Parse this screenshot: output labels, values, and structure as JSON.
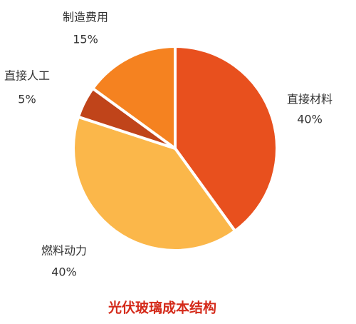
{
  "chart_data": {
    "type": "pie",
    "title": "光伏玻璃成本结构",
    "categories": [
      "直接材料",
      "燃料动力",
      "直接人工",
      "制造费用"
    ],
    "values": [
      40,
      40,
      5,
      15
    ],
    "value_labels": [
      "40%",
      "40%",
      "5%",
      "15%"
    ],
    "colors": [
      "#e8501e",
      "#fbb74a",
      "#c0441a",
      "#f58220"
    ]
  }
}
